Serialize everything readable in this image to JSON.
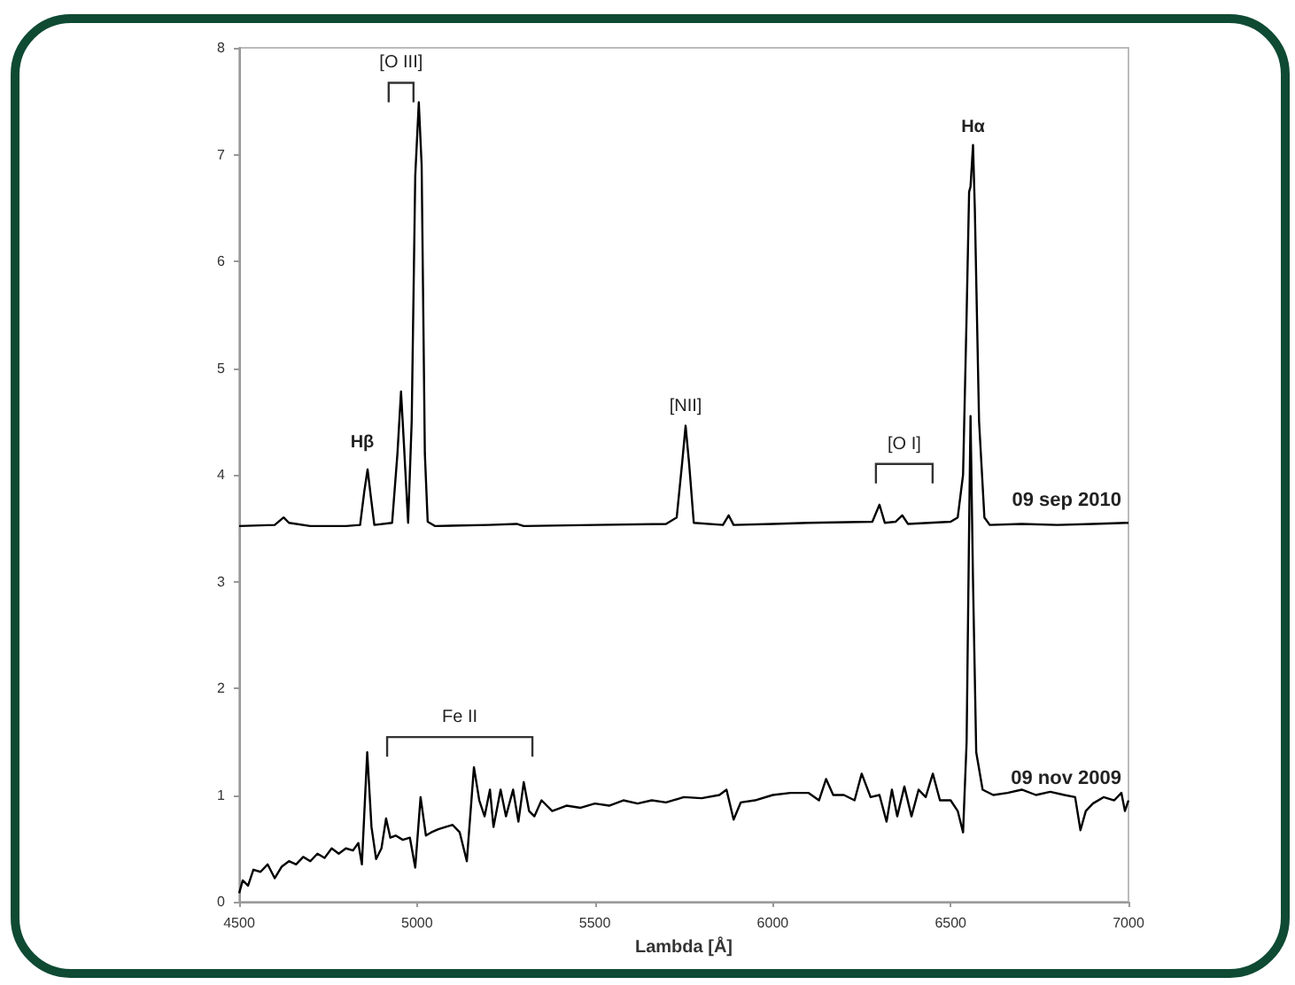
{
  "chart_data": {
    "type": "line",
    "xlabel": "Lambda [Å]",
    "xlim": [
      4500,
      7000
    ],
    "xticks": [
      4500,
      5000,
      5500,
      6000,
      6500,
      7000
    ],
    "ylim": [
      0,
      8
    ],
    "yticks": [
      0,
      1,
      2,
      3,
      4,
      5,
      6,
      7,
      8
    ],
    "grid": false,
    "legend": false,
    "marker": "none",
    "line_style": "solid",
    "series": [
      {
        "name": "09 sep 2010",
        "color": "#000000",
        "x": [
          4500,
          4600,
          4625,
          4640,
          4700,
          4800,
          4840,
          4852,
          4861,
          4870,
          4880,
          4930,
          4945,
          4955,
          4963,
          4975,
          4985,
          4995,
          5005,
          5013,
          5022,
          5030,
          5050,
          5200,
          5280,
          5300,
          5500,
          5700,
          5730,
          5745,
          5755,
          5765,
          5778,
          5860,
          5876,
          5890,
          6000,
          6100,
          6280,
          6300,
          6315,
          6345,
          6364,
          6380,
          6500,
          6520,
          6535,
          6545,
          6552,
          6556,
          6563,
          6568,
          6580,
          6595,
          6610,
          6700,
          6800,
          6900,
          7000
        ],
        "values": [
          3.52,
          3.53,
          3.6,
          3.55,
          3.52,
          3.52,
          3.53,
          3.85,
          4.05,
          3.8,
          3.53,
          3.55,
          4.2,
          4.78,
          4.3,
          3.55,
          4.5,
          6.8,
          7.49,
          6.9,
          4.2,
          3.56,
          3.52,
          3.53,
          3.54,
          3.52,
          3.53,
          3.54,
          3.6,
          4.1,
          4.46,
          4.1,
          3.55,
          3.53,
          3.62,
          3.53,
          3.54,
          3.55,
          3.56,
          3.72,
          3.55,
          3.56,
          3.62,
          3.54,
          3.56,
          3.6,
          4.0,
          5.5,
          6.65,
          6.7,
          7.09,
          6.5,
          4.5,
          3.6,
          3.53,
          3.54,
          3.53,
          3.54,
          3.55
        ]
      },
      {
        "name": "09 nov 2009",
        "color": "#000000",
        "x": [
          4500,
          4510,
          4525,
          4540,
          4560,
          4580,
          4600,
          4620,
          4640,
          4660,
          4680,
          4700,
          4720,
          4740,
          4760,
          4780,
          4800,
          4820,
          4835,
          4845,
          4860,
          4872,
          4885,
          4900,
          4913,
          4925,
          4940,
          4960,
          4980,
          4995,
          5010,
          5025,
          5040,
          5060,
          5080,
          5100,
          5120,
          5140,
          5160,
          5175,
          5190,
          5205,
          5215,
          5235,
          5250,
          5270,
          5285,
          5300,
          5315,
          5330,
          5350,
          5380,
          5420,
          5460,
          5500,
          5540,
          5580,
          5620,
          5660,
          5700,
          5750,
          5800,
          5850,
          5870,
          5890,
          5910,
          5950,
          6000,
          6050,
          6100,
          6130,
          6150,
          6170,
          6200,
          6230,
          6250,
          6275,
          6300,
          6320,
          6335,
          6350,
          6370,
          6390,
          6410,
          6430,
          6450,
          6470,
          6500,
          6520,
          6535,
          6545,
          6552,
          6556,
          6563,
          6572,
          6590,
          6620,
          6660,
          6700,
          6740,
          6780,
          6820,
          6850,
          6865,
          6880,
          6900,
          6930,
          6960,
          6980,
          6990,
          7000
        ],
        "values": [
          0.08,
          0.2,
          0.15,
          0.3,
          0.28,
          0.35,
          0.22,
          0.33,
          0.38,
          0.35,
          0.42,
          0.38,
          0.45,
          0.41,
          0.5,
          0.45,
          0.5,
          0.48,
          0.55,
          0.35,
          1.4,
          0.7,
          0.4,
          0.5,
          0.78,
          0.6,
          0.62,
          0.58,
          0.6,
          0.32,
          0.98,
          0.62,
          0.65,
          0.68,
          0.7,
          0.72,
          0.65,
          0.38,
          1.26,
          0.95,
          0.8,
          1.05,
          0.7,
          1.05,
          0.8,
          1.05,
          0.75,
          1.12,
          0.85,
          0.8,
          0.95,
          0.85,
          0.9,
          0.88,
          0.92,
          0.9,
          0.95,
          0.92,
          0.95,
          0.93,
          0.98,
          0.97,
          1.0,
          1.05,
          0.77,
          0.93,
          0.95,
          1.0,
          1.02,
          1.02,
          0.95,
          1.15,
          1.0,
          1.0,
          0.95,
          1.2,
          0.98,
          1.0,
          0.75,
          1.05,
          0.8,
          1.08,
          0.8,
          1.05,
          0.98,
          1.2,
          0.95,
          0.95,
          0.85,
          0.65,
          1.5,
          3.5,
          4.55,
          3.0,
          1.4,
          1.05,
          1.0,
          1.02,
          1.05,
          1.0,
          1.03,
          1.0,
          0.98,
          0.67,
          0.85,
          0.92,
          0.98,
          0.95,
          1.02,
          0.85,
          0.95
        ]
      }
    ],
    "annotations": [
      {
        "text": "Hβ",
        "x": 4861,
        "y": 4.05
      },
      {
        "text": "[O III]",
        "x": 5005,
        "y": 7.49
      },
      {
        "text": "[NII]",
        "x": 5755,
        "y": 4.46
      },
      {
        "text": "[O I]",
        "x": 6300,
        "y": 3.72
      },
      {
        "text": "Hα",
        "x": 6563,
        "y": 7.09
      },
      {
        "text": "Fe II",
        "x": 5160,
        "y": 1.26
      }
    ]
  }
}
